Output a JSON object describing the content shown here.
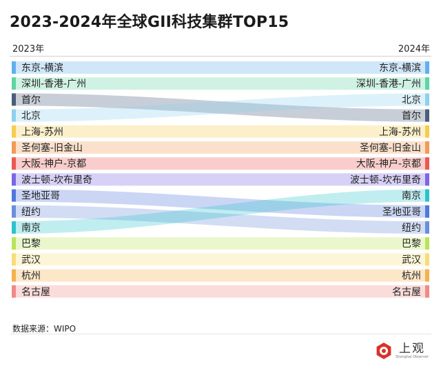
{
  "header": {
    "title": "2023-2024年全球GII科技集群TOP15",
    "left_year": "2023年",
    "right_year": "2024年"
  },
  "footer": {
    "source": "数据来源：WIPO",
    "logo_cn": "上观",
    "logo_en": "Shanghai Observer"
  },
  "chart_data": {
    "type": "slope-ranking",
    "x_labels": [
      "2023年",
      "2024年"
    ],
    "items": [
      {
        "name": "东京-横滨",
        "rank_2023": 1,
        "rank_2024": 1,
        "color": "#62aff0"
      },
      {
        "name": "深圳-香港-广州",
        "rank_2023": 2,
        "rank_2024": 2,
        "color": "#5fd4a6"
      },
      {
        "name": "首尔",
        "rank_2023": 3,
        "rank_2024": 4,
        "color": "#4a5e7a"
      },
      {
        "name": "北京",
        "rank_2023": 4,
        "rank_2024": 3,
        "color": "#8fd0ee"
      },
      {
        "name": "上海-苏州",
        "rank_2023": 5,
        "rank_2024": 5,
        "color": "#f6cd4e"
      },
      {
        "name": "圣何塞-旧金山",
        "rank_2023": 6,
        "rank_2024": 6,
        "color": "#f39a55"
      },
      {
        "name": "大阪-神户-京都",
        "rank_2023": 7,
        "rank_2024": 7,
        "color": "#ea5a52"
      },
      {
        "name": "波士顿-坎布里奇",
        "rank_2023": 8,
        "rank_2024": 8,
        "color": "#7a66e6"
      },
      {
        "name": "圣地亚哥",
        "rank_2023": 9,
        "rank_2024": 10,
        "color": "#4e78dc"
      },
      {
        "name": "纽约",
        "rank_2023": 10,
        "rank_2024": 11,
        "color": "#6b8fdc"
      },
      {
        "name": "南京",
        "rank_2023": 11,
        "rank_2024": 9,
        "color": "#2ec2cc"
      },
      {
        "name": "巴黎",
        "rank_2023": 12,
        "rank_2024": 12,
        "color": "#b9e35a"
      },
      {
        "name": "武汉",
        "rank_2023": 13,
        "rank_2024": 13,
        "color": "#f7dd7a"
      },
      {
        "name": "杭州",
        "rank_2023": 14,
        "rank_2024": 14,
        "color": "#f5b14c"
      },
      {
        "name": "名古屋",
        "rank_2023": 15,
        "rank_2024": 15,
        "color": "#f08a86"
      }
    ]
  }
}
